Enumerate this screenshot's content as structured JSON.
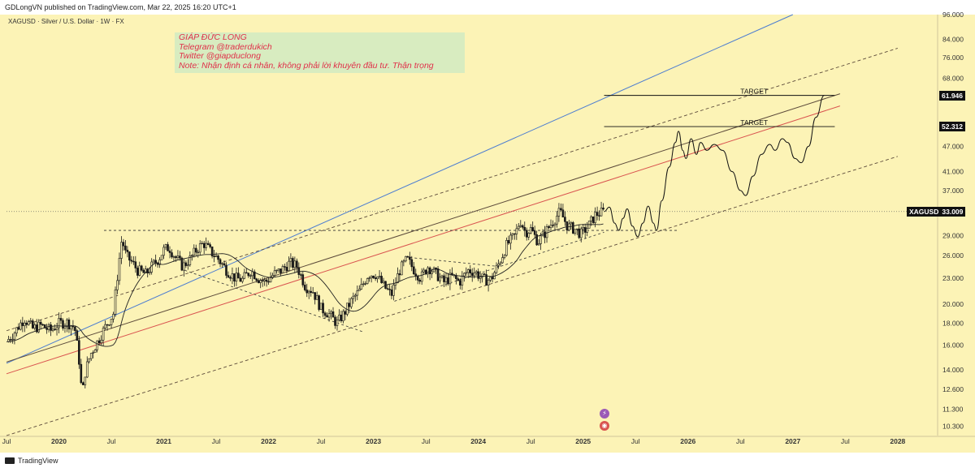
{
  "header": {
    "text": "GDLongVN published on TradingView.com, Mar 22, 2025 16:20 UTC+1"
  },
  "symbol": "XAGUSD · Silver / U.S. Dollar · 1W · FX",
  "note": {
    "lines": [
      "GIÁP ĐỨC LONG",
      "Telegram @traderdukich",
      "Twitter @giapduclong",
      "Note: Nhận định cá nhân, không phải lời khuyên đầu tư. Thận trọng"
    ]
  },
  "footer": {
    "brand": "TradingView"
  },
  "chart_data": {
    "type": "line",
    "title": "XAGUSD · Silver / U.S. Dollar · 1W · FX",
    "scale": "log",
    "ylim": [
      9.8,
      96.0
    ],
    "y_ticks": [
      "96.000",
      "84.000",
      "76.000",
      "68.000",
      "61.946",
      "52.312",
      "47.000",
      "41.000",
      "37.000",
      "33.009",
      "29.000",
      "26.000",
      "23.000",
      "20.000",
      "18.000",
      "16.000",
      "14.000",
      "12.600",
      "11.300",
      "10.300"
    ],
    "y_tick_values": [
      96,
      84,
      76,
      68,
      61.946,
      52.312,
      47,
      41,
      37,
      33.009,
      29,
      26,
      23,
      20,
      18,
      16,
      14,
      12.6,
      11.3,
      10.3
    ],
    "x_labels": [
      "Jul",
      "2020",
      "Jul",
      "2021",
      "Jul",
      "2022",
      "Jul",
      "2023",
      "Jul",
      "2024",
      "Jul",
      "2025",
      "Jul",
      "2026",
      "Jul",
      "2027",
      "Jul",
      "2028"
    ],
    "x_label_dates": [
      2019.5,
      2020.0,
      2020.5,
      2021.0,
      2021.5,
      2022.0,
      2022.5,
      2023.0,
      2023.5,
      2024.0,
      2024.5,
      2025.0,
      2025.5,
      2026.0,
      2026.5,
      2027.0,
      2027.5,
      2028.0
    ],
    "x_range": [
      2019.5,
      2028.35
    ],
    "current_price": {
      "label": "XAGUSD",
      "value": "33.009",
      "numeric": 33.009
    },
    "targets": [
      {
        "label": "TARGET",
        "value": "61.946",
        "numeric": 61.946,
        "start": 2025.2,
        "end": 2027.4
      },
      {
        "label": "TARGET",
        "value": "52.312",
        "numeric": 52.312,
        "start": 2025.2,
        "end": 2027.4
      }
    ],
    "price_series": [
      [
        2019.5,
        16.3
      ],
      [
        2019.58,
        17.2
      ],
      [
        2019.67,
        18.5
      ],
      [
        2019.75,
        17.5
      ],
      [
        2019.83,
        17.8
      ],
      [
        2019.92,
        17.3
      ],
      [
        2020.0,
        18.0
      ],
      [
        2020.08,
        18.1
      ],
      [
        2020.15,
        17.6
      ],
      [
        2020.2,
        14.2
      ],
      [
        2020.22,
        12.0
      ],
      [
        2020.25,
        13.8
      ],
      [
        2020.3,
        15.2
      ],
      [
        2020.38,
        16.5
      ],
      [
        2020.45,
        17.8
      ],
      [
        2020.52,
        19.0
      ],
      [
        2020.56,
        23.5
      ],
      [
        2020.6,
        28.5
      ],
      [
        2020.64,
        26.0
      ],
      [
        2020.7,
        25.0
      ],
      [
        2020.75,
        24.0
      ],
      [
        2020.83,
        23.5
      ],
      [
        2020.9,
        24.8
      ],
      [
        2020.95,
        25.5
      ],
      [
        2021.0,
        26.8
      ],
      [
        2021.05,
        27.2
      ],
      [
        2021.1,
        26.0
      ],
      [
        2021.18,
        24.5
      ],
      [
        2021.25,
        25.5
      ],
      [
        2021.32,
        27.0
      ],
      [
        2021.38,
        27.8
      ],
      [
        2021.45,
        26.5
      ],
      [
        2021.52,
        25.5
      ],
      [
        2021.6,
        24.0
      ],
      [
        2021.68,
        23.0
      ],
      [
        2021.75,
        22.8
      ],
      [
        2021.83,
        24.0
      ],
      [
        2021.9,
        23.0
      ],
      [
        2021.97,
        22.5
      ],
      [
        2022.05,
        23.5
      ],
      [
        2022.12,
        24.0
      ],
      [
        2022.2,
        25.0
      ],
      [
        2022.27,
        24.5
      ],
      [
        2022.35,
        22.0
      ],
      [
        2022.42,
        21.5
      ],
      [
        2022.5,
        19.5
      ],
      [
        2022.57,
        19.0
      ],
      [
        2022.65,
        18.0
      ],
      [
        2022.72,
        19.0
      ],
      [
        2022.8,
        20.5
      ],
      [
        2022.87,
        21.5
      ],
      [
        2022.95,
        23.5
      ],
      [
        2023.02,
        23.5
      ],
      [
        2023.1,
        22.0
      ],
      [
        2023.17,
        21.0
      ],
      [
        2023.25,
        24.0
      ],
      [
        2023.32,
        25.5
      ],
      [
        2023.38,
        24.2
      ],
      [
        2023.45,
        23.0
      ],
      [
        2023.52,
        24.5
      ],
      [
        2023.6,
        23.5
      ],
      [
        2023.67,
        22.5
      ],
      [
        2023.75,
        23.2
      ],
      [
        2023.82,
        22.5
      ],
      [
        2023.9,
        24.0
      ],
      [
        2023.97,
        23.8
      ],
      [
        2024.05,
        22.8
      ],
      [
        2024.12,
        22.8
      ],
      [
        2024.2,
        25.0
      ],
      [
        2024.27,
        27.5
      ],
      [
        2024.35,
        29.0
      ],
      [
        2024.4,
        31.5
      ],
      [
        2024.45,
        29.5
      ],
      [
        2024.5,
        30.0
      ],
      [
        2024.57,
        28.0
      ],
      [
        2024.62,
        29.0
      ],
      [
        2024.7,
        31.0
      ],
      [
        2024.78,
        33.0
      ],
      [
        2024.85,
        30.5
      ],
      [
        2024.92,
        30.0
      ],
      [
        2024.98,
        29.2
      ],
      [
        2025.05,
        30.5
      ],
      [
        2025.12,
        32.5
      ],
      [
        2025.2,
        33.0
      ]
    ],
    "projection": [
      [
        2025.2,
        33.0
      ],
      [
        2025.25,
        33.8
      ],
      [
        2025.3,
        31.0
      ],
      [
        2025.34,
        29.8
      ],
      [
        2025.38,
        31.8
      ],
      [
        2025.42,
        33.5
      ],
      [
        2025.47,
        30.5
      ],
      [
        2025.52,
        28.8
      ],
      [
        2025.57,
        31.0
      ],
      [
        2025.62,
        34.0
      ],
      [
        2025.67,
        31.0
      ],
      [
        2025.7,
        29.8
      ],
      [
        2025.75,
        35.0
      ],
      [
        2025.82,
        42.0
      ],
      [
        2025.88,
        48.0
      ],
      [
        2025.91,
        51.0
      ],
      [
        2025.95,
        46.0
      ],
      [
        2025.98,
        44.0
      ],
      [
        2026.03,
        49.0
      ],
      [
        2026.08,
        45.0
      ],
      [
        2026.12,
        48.0
      ],
      [
        2026.18,
        46.0
      ],
      [
        2026.25,
        47.5
      ],
      [
        2026.33,
        46.0
      ],
      [
        2026.42,
        41.0
      ],
      [
        2026.5,
        37.0
      ],
      [
        2026.55,
        36.0
      ],
      [
        2026.62,
        40.0
      ],
      [
        2026.7,
        45.0
      ],
      [
        2026.78,
        47.5
      ],
      [
        2026.83,
        46.0
      ],
      [
        2026.9,
        49.0
      ],
      [
        2026.95,
        48.0
      ],
      [
        2027.02,
        44.0
      ],
      [
        2027.08,
        43.0
      ],
      [
        2027.15,
        47.0
      ],
      [
        2027.22,
        55.0
      ],
      [
        2027.3,
        62.0
      ]
    ],
    "annotations": [
      "TARGET",
      "TARGET"
    ]
  },
  "colors": {
    "background": "#fcf3b6",
    "candle": "#1a1a1a",
    "blue_line": "#4b7cd1",
    "red_line": "#d9534f",
    "channel": "#5c4a3a",
    "note_bg": "#d8ecc0",
    "note_text": "#e0304a"
  }
}
